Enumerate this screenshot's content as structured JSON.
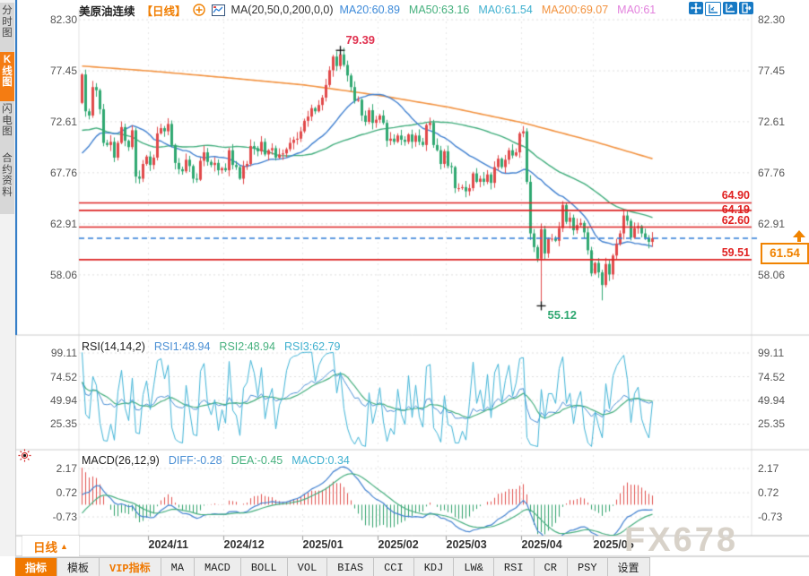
{
  "header": {
    "symbol": "美原油连续",
    "period_tag": "【日线】",
    "ma_settings": "MA(20,50,0,200,0,0)",
    "ma_values": [
      {
        "label": "MA20:60.89",
        "color": "#3d8ad9"
      },
      {
        "label": "MA50:63.16",
        "color": "#45b07d"
      },
      {
        "label": "MA0:61.54",
        "color": "#3fb0cf"
      },
      {
        "label": "MA200:69.07",
        "color": "#f2923e"
      },
      {
        "label": "MA0:61",
        "color": "#e282dd"
      }
    ]
  },
  "sidebar": {
    "tabs": [
      {
        "label": "分时图",
        "active": false
      },
      {
        "label": "K线图",
        "active": true
      },
      {
        "label": "闪电图",
        "active": false
      },
      {
        "label": "合约资料",
        "active": false
      }
    ]
  },
  "rsi_panel": {
    "title": "RSI(14,14,2)",
    "values": [
      {
        "label": "RSI1:48.94",
        "color": "#4a8fd4"
      },
      {
        "label": "RSI2:48.94",
        "color": "#45b07d"
      },
      {
        "label": "RSI3:62.79",
        "color": "#3fb0cf"
      }
    ]
  },
  "macd_panel": {
    "title": "MACD(26,12,9)",
    "values": [
      {
        "label": "DIFF:-0.28",
        "color": "#4a8fd4"
      },
      {
        "label": "DEA:-0.45",
        "color": "#45b07d"
      },
      {
        "label": "MACD:0.34",
        "color": "#3fb0cf"
      }
    ]
  },
  "xaxis": {
    "period_label": "日线",
    "period_arrow": "▲"
  },
  "toolbar": {
    "tabs": [
      {
        "label": "指标",
        "state": "active"
      },
      {
        "label": "模板",
        "state": "normal"
      },
      {
        "label": "VIP指标",
        "state": "vip"
      },
      {
        "label": "MA",
        "state": "normal"
      },
      {
        "label": "MACD",
        "state": "normal"
      },
      {
        "label": "BOLL",
        "state": "normal"
      },
      {
        "label": "VOL",
        "state": "normal"
      },
      {
        "label": "BIAS",
        "state": "normal"
      },
      {
        "label": "CCI",
        "state": "normal"
      },
      {
        "label": "KDJ",
        "state": "normal"
      },
      {
        "label": "LW&",
        "state": "normal"
      },
      {
        "label": "RSI",
        "state": "normal"
      },
      {
        "label": "CR",
        "state": "normal"
      },
      {
        "label": "PSY",
        "state": "normal"
      },
      {
        "label": "设置",
        "state": "normal"
      }
    ]
  },
  "watermark": "FX678",
  "price_tag": {
    "value": "61.54"
  },
  "annotations": {
    "high": "79.39",
    "low": "55.12"
  },
  "icons": {
    "window_buttons": [
      "pan-icon",
      "x-axis-expand-icon",
      "y-axis-scale-icon",
      "exit-icon"
    ],
    "header": [
      "circle-plus-icon",
      "mini-chart-icon"
    ],
    "macd_corner": "sun-icon"
  },
  "colors": {
    "up": "#e1494a",
    "down": "#2fa871",
    "ma20": "#4080d0",
    "ma50": "#40ad7c",
    "ma200": "#f29240",
    "level_line": "#dd2424",
    "current_line": "#2e7cd6",
    "rsi_fast": "#3fb3d6",
    "rsi_slow": "#45ae7e",
    "rsi_base": "#4a8fd4",
    "hist_pos": "#e0504e",
    "hist_neg": "#2fa06b",
    "accent_orange": "#f07800",
    "window_btn_blue": "#1779c4"
  },
  "chart_data": {
    "type": "candlestick",
    "title": "美原油连续 日线",
    "panels": [
      "price",
      "RSI",
      "MACD"
    ],
    "price_axis_ticks": [
      82.3,
      77.45,
      72.61,
      67.76,
      62.91,
      58.06
    ],
    "rsi_axis_ticks": [
      99.11,
      74.52,
      49.94,
      25.35
    ],
    "macd_axis_ticks": [
      2.17,
      0.72,
      -0.73
    ],
    "months": [
      {
        "label": "2024/11",
        "index": 19
      },
      {
        "label": "2024/12",
        "index": 40
      },
      {
        "label": "2025/01",
        "index": 62
      },
      {
        "label": "2025/02",
        "index": 83
      },
      {
        "label": "2025/03",
        "index": 102
      },
      {
        "label": "2025/04",
        "index": 123
      },
      {
        "label": "2025/05",
        "index": 143
      }
    ],
    "pre_closes": [
      78.5,
      77.6,
      76.5,
      75.2,
      73.5,
      72.8,
      73.4,
      74.0,
      75.1,
      76.3,
      77.4,
      77.9,
      77.2,
      76.0,
      74.8,
      73.9,
      72.5,
      71.2,
      70.1,
      69.2,
      68.7,
      69.8,
      71.1,
      70.5,
      69.0,
      67.8,
      66.8,
      65.8,
      66.3,
      67.3,
      68.2,
      69.5,
      70.7,
      71.1,
      70.3,
      69.4,
      68.4,
      67.5,
      66.7,
      67.9,
      69.7,
      70.2,
      71.4,
      73.7,
      74.4
    ],
    "closes": [
      77.1,
      73.6,
      73.2,
      75.9,
      75.6,
      73.8,
      70.6,
      70.4,
      70.7,
      69.2,
      70.6,
      72.1,
      70.8,
      70.2,
      71.8,
      67.4,
      67.2,
      68.6,
      69.3,
      68.5,
      69.2,
      71.5,
      72.0,
      71.7,
      72.4,
      70.4,
      68.7,
      68.1,
      67.9,
      69.0,
      68.4,
      67.2,
      67.1,
      68.9,
      69.7,
      68.8,
      68.5,
      68.7,
      68.0,
      68.2,
      68.0,
      69.9,
      68.5,
      68.3,
      67.2,
      68.4,
      68.6,
      70.3,
      70.1,
      69.8,
      70.7,
      69.5,
      69.9,
      70.1,
      69.2,
      69.5,
      69.6,
      70.0,
      70.6,
      70.9,
      71.0,
      71.7,
      72.7,
      73.1,
      73.9,
      73.6,
      74.2,
      74.9,
      76.1,
      77.5,
      78.8,
      77.9,
      79.0,
      78.0,
      77.0,
      75.9,
      74.6,
      74.7,
      73.2,
      72.6,
      73.7,
      72.5,
      72.8,
      73.2,
      72.5,
      70.8,
      71.0,
      70.7,
      71.3,
      70.9,
      70.7,
      71.4,
      70.7,
      71.3,
      70.7,
      70.4,
      72.3,
      72.5,
      70.4,
      69.9,
      68.6,
      69.8,
      68.4,
      68.3,
      66.3,
      66.3,
      66.4,
      66.0,
      66.3,
      67.7,
      66.9,
      67.2,
      66.9,
      67.6,
      66.8,
      68.3,
      69.1,
      68.3,
      69.0,
      69.9,
      69.4,
      69.7,
      71.5,
      71.7,
      66.9,
      62.0,
      60.7,
      59.6,
      62.4,
      60.1,
      61.5,
      61.5,
      61.3,
      62.5,
      64.7,
      63.1,
      63.5,
      62.3,
      62.8,
      63.0,
      62.1,
      60.4,
      58.2,
      59.2,
      58.3,
      57.1,
      59.1,
      58.1,
      59.9,
      61.0,
      62.0,
      63.7,
      63.2,
      61.6,
      62.5,
      62.7,
      62.0,
      61.6,
      61.2,
      61.54
    ],
    "extremes": [
      {
        "index": 72,
        "high": 79.39
      },
      {
        "index": 128,
        "low": 55.12
      },
      {
        "index": 145,
        "low": 55.64
      }
    ],
    "support_resistance_lines": [
      64.9,
      64.19,
      62.6,
      59.51
    ],
    "current_price": 61.54,
    "ma200_anchors": [
      [
        0,
        77.9
      ],
      [
        20,
        77.4
      ],
      [
        40,
        76.8
      ],
      [
        62,
        76.1
      ],
      [
        83,
        75.1
      ],
      [
        102,
        74.0
      ],
      [
        123,
        72.5
      ],
      [
        143,
        70.7
      ],
      [
        159,
        69.1
      ]
    ],
    "indicator_params": {
      "ma": [
        20,
        50,
        200
      ],
      "rsi": [
        14,
        14,
        2
      ],
      "macd": [
        26,
        12,
        9
      ]
    },
    "indicator_readings": {
      "ma20": 60.89,
      "ma50": 63.16,
      "ma0": 61.54,
      "ma200": 69.07,
      "rsi1": 48.94,
      "rsi2": 48.94,
      "rsi3": 62.79,
      "diff": -0.28,
      "dea": -0.45,
      "macd": 0.34
    }
  }
}
